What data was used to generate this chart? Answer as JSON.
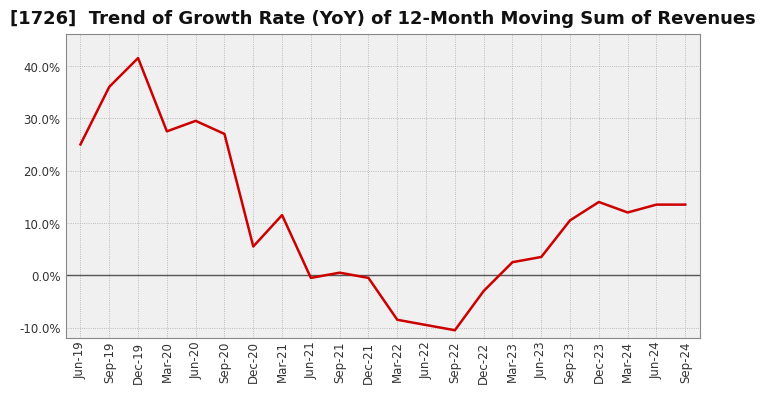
{
  "title": "[1726]  Trend of Growth Rate (YoY) of 12-Month Moving Sum of Revenues",
  "line_color": "#cc0000",
  "background_color": "#ffffff",
  "plot_bg_color": "#f0f0f0",
  "grid_color": "#aaaaaa",
  "x_labels": [
    "Jun-19",
    "Sep-19",
    "Dec-19",
    "Mar-20",
    "Jun-20",
    "Sep-20",
    "Dec-20",
    "Mar-21",
    "Jun-21",
    "Sep-21",
    "Dec-21",
    "Mar-22",
    "Jun-22",
    "Sep-22",
    "Dec-22",
    "Mar-23",
    "Jun-23",
    "Sep-23",
    "Dec-23",
    "Mar-24",
    "Jun-24",
    "Sep-24"
  ],
  "y_values": [
    0.25,
    0.36,
    0.415,
    0.275,
    0.295,
    0.27,
    0.055,
    0.115,
    -0.005,
    0.005,
    -0.005,
    -0.085,
    -0.095,
    -0.105,
    -0.03,
    0.025,
    0.035,
    0.105,
    0.14,
    0.12,
    0.135,
    0.135
  ],
  "ylim": [
    -0.12,
    0.46
  ],
  "yticks": [
    -0.1,
    0.0,
    0.1,
    0.2,
    0.3,
    0.4
  ],
  "title_fontsize": 13,
  "tick_fontsize": 8.5,
  "line_width": 1.8
}
